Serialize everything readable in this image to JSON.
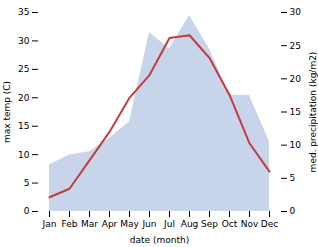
{
  "chart_data": {
    "type": "line",
    "categories": [
      "Jan",
      "Feb",
      "Mar",
      "Apr",
      "May",
      "Jun",
      "Jul",
      "Aug",
      "Sep",
      "Oct",
      "Nov",
      "Dec"
    ],
    "xlabel": "date (month)",
    "ylabel": "max temp (C)",
    "y2label": "med. precipitation (kg/m2)",
    "series": [
      {
        "type": "area",
        "axis": "y2",
        "color": "#c8d4ea",
        "values": [
          7.0,
          8.5,
          9.0,
          11.0,
          13.5,
          27.0,
          24.5,
          29.5,
          24.5,
          17.5,
          17.5,
          10.5
        ]
      },
      {
        "type": "line",
        "color": "#c43c3c",
        "values": [
          2.5,
          4.0,
          9.0,
          14.0,
          20.0,
          24.0,
          30.5,
          31.0,
          27.0,
          20.5,
          12.0,
          7.0
        ]
      }
    ],
    "ylim": [
      0,
      35
    ],
    "yticks": [
      0,
      5,
      10,
      15,
      20,
      25,
      30,
      35
    ],
    "y2lim": [
      0,
      30
    ],
    "y2ticks": [
      0,
      5,
      10,
      15,
      20,
      25,
      30
    ],
    "grid": false
  }
}
